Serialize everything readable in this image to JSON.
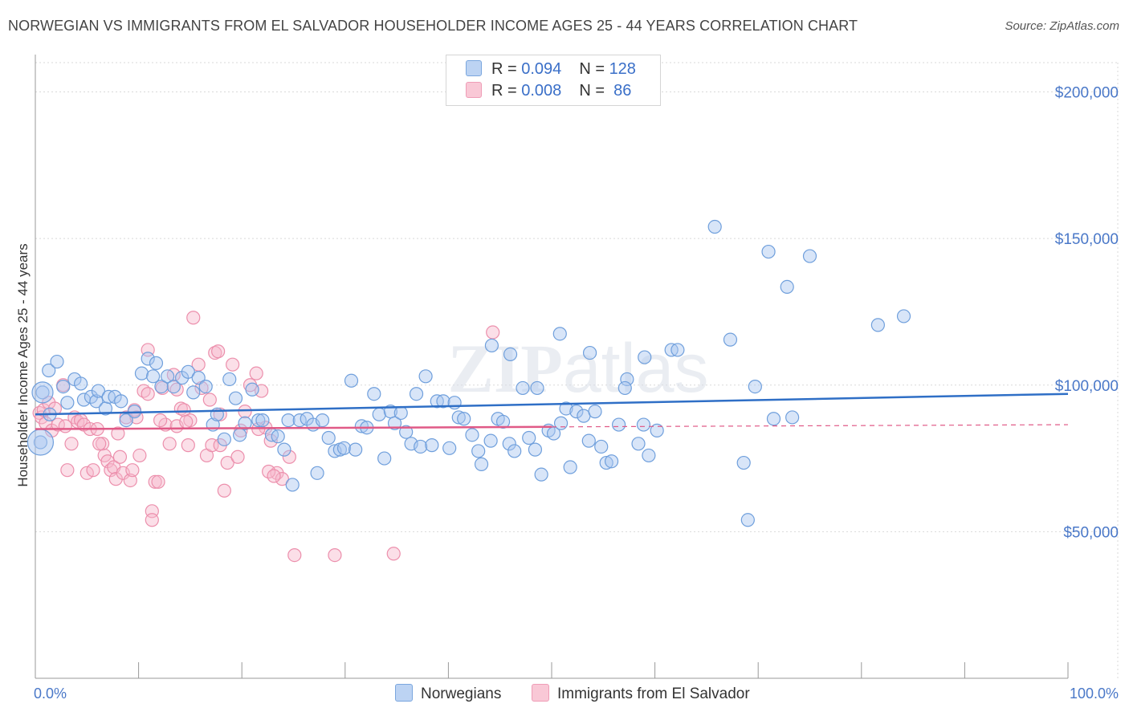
{
  "title": "NORWEGIAN VS IMMIGRANTS FROM EL SALVADOR HOUSEHOLDER INCOME AGES 25 - 44 YEARS CORRELATION CHART",
  "source": "Source: ZipAtlas.com",
  "watermark": "ZIPatlas",
  "legend": {
    "rows": [
      {
        "r_label": "R = ",
        "r_value": "0.094",
        "n_label": "N = ",
        "n_value": "128"
      },
      {
        "r_label": "R = ",
        "r_value": "0.008",
        "n_label": "N = ",
        "n_value": " 86"
      }
    ]
  },
  "colors": {
    "blue_fill": "#a9c6ef",
    "blue_stroke": "#6f9fdc",
    "blue_line": "#2f6fc6",
    "pink_fill": "#f7b9cc",
    "pink_stroke": "#ec8fac",
    "pink_line": "#e05a87",
    "axis_text": "#4a78c8",
    "grid": "#d9d9d9"
  },
  "chart_data": {
    "type": "scatter",
    "title": "NORWEGIAN VS IMMIGRANTS FROM EL SALVADOR HOUSEHOLDER INCOME AGES 25 - 44 YEARS CORRELATION CHART",
    "xlabel_left": "0.0%",
    "xlabel_right": "100.0%",
    "ylabel": "Householder Income Ages 25 - 44 years",
    "xlim": [
      0,
      100
    ],
    "ylim": [
      0,
      210000
    ],
    "yticks": [
      50000,
      100000,
      150000,
      200000
    ],
    "ytick_labels": [
      "$50,000",
      "$100,000",
      "$150,000",
      "$200,000"
    ],
    "legend_position": "top-center",
    "grid": true,
    "series": [
      {
        "name": "Norwegians",
        "color": "#a9c6ef",
        "trend": {
          "x": [
            0,
            100
          ],
          "y": [
            90000,
            97000
          ]
        },
        "points": [
          [
            0.5,
            80500
          ],
          [
            0.7,
            97500
          ],
          [
            1.3,
            105000
          ],
          [
            1.4,
            90000
          ],
          [
            2.1,
            108000
          ],
          [
            2.7,
            99500
          ],
          [
            3.1,
            94000
          ],
          [
            3.8,
            102000
          ],
          [
            4.4,
            100500
          ],
          [
            4.7,
            95000
          ],
          [
            5.4,
            96000
          ],
          [
            5.9,
            94500
          ],
          [
            6.1,
            98000
          ],
          [
            6.8,
            92000
          ],
          [
            7.1,
            96000
          ],
          [
            7.7,
            96000
          ],
          [
            8.3,
            94500
          ],
          [
            8.8,
            88000
          ],
          [
            9.6,
            91000
          ],
          [
            10.3,
            104000
          ],
          [
            10.9,
            109000
          ],
          [
            11.4,
            103000
          ],
          [
            11.7,
            107500
          ],
          [
            12.2,
            99500
          ],
          [
            12.8,
            103000
          ],
          [
            13.4,
            99500
          ],
          [
            14.2,
            102500
          ],
          [
            14.8,
            104500
          ],
          [
            15.3,
            97500
          ],
          [
            15.8,
            102500
          ],
          [
            16.5,
            99500
          ],
          [
            17.2,
            86500
          ],
          [
            17.6,
            90000
          ],
          [
            18.3,
            81500
          ],
          [
            18.8,
            102000
          ],
          [
            19.4,
            95500
          ],
          [
            19.8,
            83000
          ],
          [
            20.3,
            87000
          ],
          [
            21.0,
            98500
          ],
          [
            21.6,
            88000
          ],
          [
            22.0,
            88000
          ],
          [
            22.9,
            83000
          ],
          [
            23.5,
            82500
          ],
          [
            24.1,
            78000
          ],
          [
            24.5,
            88000
          ],
          [
            24.9,
            66000
          ],
          [
            25.6,
            88000
          ],
          [
            26.3,
            88500
          ],
          [
            26.9,
            86500
          ],
          [
            27.3,
            70000
          ],
          [
            27.8,
            88000
          ],
          [
            28.4,
            82000
          ],
          [
            29.0,
            77500
          ],
          [
            29.5,
            78000
          ],
          [
            29.9,
            78500
          ],
          [
            30.6,
            101500
          ],
          [
            31.0,
            78000
          ],
          [
            31.6,
            86000
          ],
          [
            32.1,
            85500
          ],
          [
            32.8,
            97000
          ],
          [
            33.3,
            90000
          ],
          [
            33.8,
            75000
          ],
          [
            34.4,
            91000
          ],
          [
            34.8,
            87000
          ],
          [
            35.4,
            90500
          ],
          [
            35.9,
            84000
          ],
          [
            36.4,
            80000
          ],
          [
            36.9,
            97000
          ],
          [
            37.3,
            79000
          ],
          [
            37.8,
            103000
          ],
          [
            38.4,
            79500
          ],
          [
            38.9,
            94500
          ],
          [
            39.5,
            94500
          ],
          [
            40.1,
            78500
          ],
          [
            40.6,
            94000
          ],
          [
            41.0,
            89000
          ],
          [
            41.5,
            88500
          ],
          [
            42.3,
            83000
          ],
          [
            42.9,
            77500
          ],
          [
            43.2,
            73000
          ],
          [
            44.1,
            81000
          ],
          [
            44.8,
            88500
          ],
          [
            45.3,
            87500
          ],
          [
            45.9,
            80000
          ],
          [
            46.4,
            77500
          ],
          [
            47.2,
            99000
          ],
          [
            47.8,
            82000
          ],
          [
            48.4,
            78000
          ],
          [
            49.0,
            69500
          ],
          [
            49.7,
            84500
          ],
          [
            50.2,
            83500
          ],
          [
            50.9,
            87000
          ],
          [
            51.4,
            92000
          ],
          [
            51.8,
            72000
          ],
          [
            52.4,
            91000
          ],
          [
            53.1,
            89500
          ],
          [
            53.6,
            81000
          ],
          [
            54.2,
            91000
          ],
          [
            54.8,
            79000
          ],
          [
            55.3,
            73500
          ],
          [
            55.8,
            74000
          ],
          [
            56.5,
            86500
          ],
          [
            57.3,
            102000
          ],
          [
            58.4,
            80000
          ],
          [
            58.9,
            86500
          ],
          [
            59.4,
            76000
          ],
          [
            60.2,
            84500
          ],
          [
            61.6,
            112000
          ],
          [
            65.8,
            154000
          ],
          [
            67.3,
            115500
          ],
          [
            68.6,
            73500
          ],
          [
            69.0,
            54000
          ],
          [
            69.7,
            99500
          ],
          [
            71.0,
            145500
          ],
          [
            71.5,
            88500
          ],
          [
            72.8,
            133500
          ],
          [
            73.3,
            89000
          ],
          [
            75.0,
            144000
          ],
          [
            81.6,
            120500
          ],
          [
            84.1,
            123500
          ],
          [
            44.2,
            113500
          ],
          [
            46.0,
            110500
          ],
          [
            48.6,
            99000
          ],
          [
            50.8,
            117500
          ],
          [
            53.7,
            111000
          ],
          [
            57.1,
            99000
          ],
          [
            59.0,
            109500
          ],
          [
            62.2,
            112000
          ]
        ]
      },
      {
        "name": "Immigrants from El Salvador",
        "color": "#f7b9cc",
        "trend": {
          "x": [
            0,
            100
          ],
          "y": [
            85000,
            86500
          ],
          "solid_until": 50
        },
        "points": [
          [
            0.4,
            90500
          ],
          [
            0.6,
            89000
          ],
          [
            0.8,
            91500
          ],
          [
            1.0,
            87000
          ],
          [
            1.3,
            94000
          ],
          [
            1.6,
            84500
          ],
          [
            1.9,
            92000
          ],
          [
            2.2,
            86500
          ],
          [
            2.7,
            100000
          ],
          [
            2.9,
            86000
          ],
          [
            3.1,
            71000
          ],
          [
            3.5,
            80000
          ],
          [
            3.8,
            89000
          ],
          [
            4.1,
            87500
          ],
          [
            4.4,
            88000
          ],
          [
            4.7,
            86500
          ],
          [
            5.0,
            70000
          ],
          [
            5.3,
            85000
          ],
          [
            5.6,
            71000
          ],
          [
            6.0,
            85000
          ],
          [
            6.5,
            80000
          ],
          [
            6.7,
            76000
          ],
          [
            7.0,
            74000
          ],
          [
            7.3,
            71000
          ],
          [
            7.6,
            72000
          ],
          [
            7.8,
            68000
          ],
          [
            8.2,
            75500
          ],
          [
            8.5,
            70000
          ],
          [
            8.8,
            89000
          ],
          [
            9.2,
            67500
          ],
          [
            9.4,
            71000
          ],
          [
            9.8,
            89000
          ],
          [
            10.1,
            76000
          ],
          [
            10.5,
            98000
          ],
          [
            10.9,
            112000
          ],
          [
            10.9,
            97000
          ],
          [
            11.3,
            57000
          ],
          [
            11.3,
            54000
          ],
          [
            11.6,
            67000
          ],
          [
            11.9,
            67000
          ],
          [
            12.3,
            99000
          ],
          [
            12.6,
            86500
          ],
          [
            13.0,
            80000
          ],
          [
            13.4,
            103500
          ],
          [
            13.7,
            98500
          ],
          [
            14.1,
            92000
          ],
          [
            14.4,
            91500
          ],
          [
            14.8,
            79500
          ],
          [
            15.0,
            88000
          ],
          [
            15.3,
            123000
          ],
          [
            15.8,
            107000
          ],
          [
            16.1,
            99000
          ],
          [
            16.6,
            76000
          ],
          [
            17.1,
            79500
          ],
          [
            17.4,
            111000
          ],
          [
            17.7,
            111500
          ],
          [
            17.9,
            90000
          ],
          [
            18.3,
            64000
          ],
          [
            18.6,
            73500
          ],
          [
            19.1,
            107000
          ],
          [
            19.6,
            75500
          ],
          [
            19.9,
            84500
          ],
          [
            20.3,
            91000
          ],
          [
            20.8,
            100000
          ],
          [
            21.4,
            104000
          ],
          [
            21.9,
            98000
          ],
          [
            22.3,
            85500
          ],
          [
            22.8,
            81000
          ],
          [
            23.4,
            70000
          ],
          [
            23.9,
            68000
          ],
          [
            24.6,
            75500
          ],
          [
            25.1,
            42000
          ],
          [
            13.7,
            86000
          ],
          [
            17.9,
            79500
          ],
          [
            16.9,
            95000
          ],
          [
            14.6,
            87500
          ],
          [
            12.1,
            88000
          ],
          [
            9.6,
            91500
          ],
          [
            8.0,
            83500
          ],
          [
            6.2,
            80000
          ],
          [
            44.3,
            118000
          ],
          [
            34.7,
            42500
          ],
          [
            29.0,
            42000
          ],
          [
            21.6,
            85000
          ],
          [
            22.6,
            70500
          ],
          [
            23.1,
            69000
          ]
        ]
      }
    ]
  },
  "bottom_legend": {
    "items": [
      {
        "label": "Norwegians"
      },
      {
        "label": "Immigrants from El Salvador"
      }
    ]
  }
}
